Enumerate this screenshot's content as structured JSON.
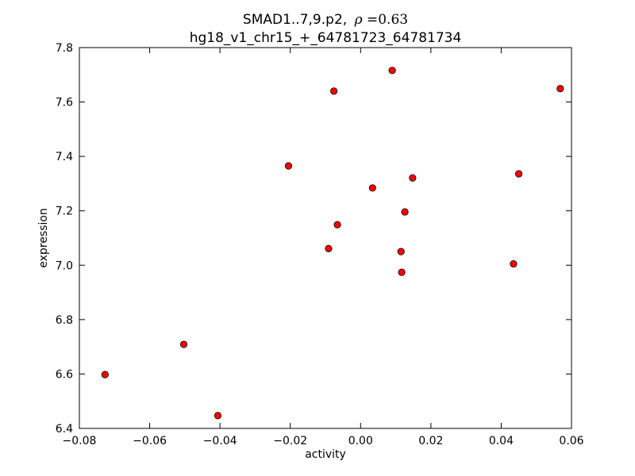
{
  "chart_data": {
    "type": "scatter",
    "title_line1": "SMAD1..7,9.p2,",
    "title_rho_symbol": "ρ",
    "title_rho_value": "=0.63",
    "title_line2": "hg18_v1_chr15_+_64781723_64781734",
    "xlabel": "activity",
    "ylabel": "expression",
    "xlim": [
      -0.08,
      0.06
    ],
    "ylim": [
      6.4,
      7.8
    ],
    "x_ticks": [
      -0.08,
      -0.06,
      -0.04,
      -0.02,
      0.0,
      0.02,
      0.04,
      0.06
    ],
    "x_tick_labels": [
      "−0.08",
      "−0.06",
      "−0.04",
      "−0.02",
      "0.00",
      "0.02",
      "0.04",
      "0.06"
    ],
    "y_ticks": [
      6.4,
      6.6,
      6.8,
      7.0,
      7.2,
      7.4,
      7.6,
      7.8
    ],
    "y_tick_labels": [
      "6.4",
      "6.6",
      "6.8",
      "7.0",
      "7.2",
      "7.4",
      "7.6",
      "7.8"
    ],
    "grid": false,
    "marker_color": "#ff0000",
    "marker_edge_color": "#000000",
    "points": [
      {
        "x": -0.0727,
        "y": 6.598
      },
      {
        "x": -0.0503,
        "y": 6.709
      },
      {
        "x": -0.0406,
        "y": 6.447
      },
      {
        "x": -0.0205,
        "y": 7.365
      },
      {
        "x": -0.0091,
        "y": 7.061
      },
      {
        "x": -0.0076,
        "y": 7.64
      },
      {
        "x": -0.0066,
        "y": 7.149
      },
      {
        "x": 0.0034,
        "y": 7.284
      },
      {
        "x": 0.009,
        "y": 7.716
      },
      {
        "x": 0.0115,
        "y": 7.05
      },
      {
        "x": 0.0117,
        "y": 6.974
      },
      {
        "x": 0.0126,
        "y": 7.196
      },
      {
        "x": 0.0148,
        "y": 7.321
      },
      {
        "x": 0.0435,
        "y": 7.005
      },
      {
        "x": 0.045,
        "y": 7.336
      },
      {
        "x": 0.0568,
        "y": 7.649
      }
    ]
  }
}
